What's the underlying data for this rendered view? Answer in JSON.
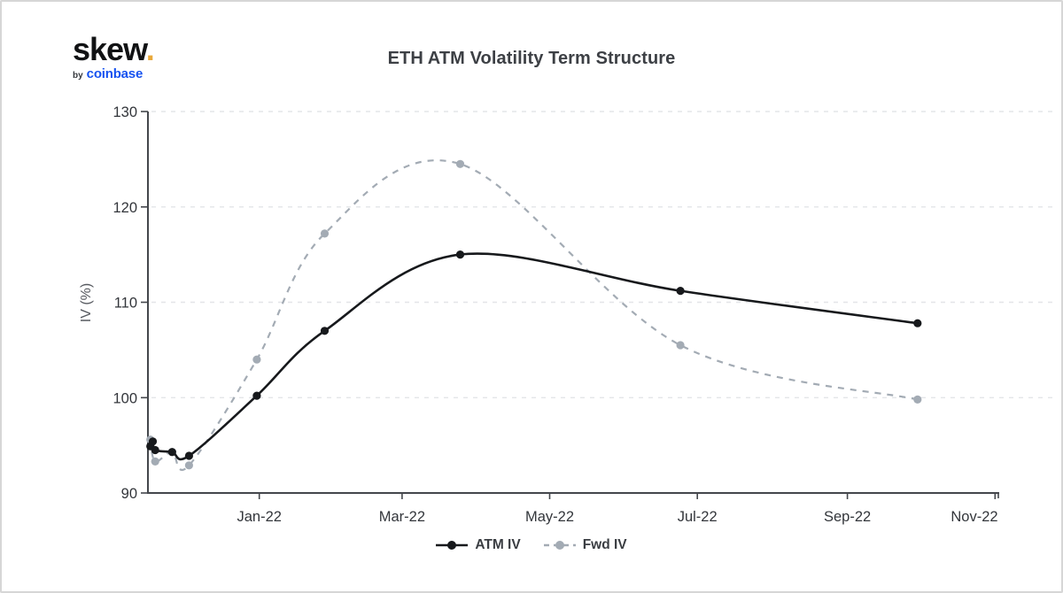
{
  "brand": {
    "name": "skew",
    "dot": ".",
    "by": "by",
    "company": "coinbase"
  },
  "title": "ETH ATM Volatility Term Structure",
  "legend": {
    "items": [
      {
        "label": "ATM IV"
      },
      {
        "label": "Fwd IV"
      }
    ]
  },
  "colors": {
    "atm_line": "#17191c",
    "fwd_line": "#a3abb4",
    "axis": "#44474c",
    "grid": "#e3e5e8",
    "tick_label": "#33363b",
    "title_text": "#3d4045",
    "brand_dot": "#e9a93b",
    "coinbase_blue": "#1652f0"
  },
  "chart_data": {
    "type": "line",
    "title": "ETH ATM Volatility Term Structure",
    "xlabel": "",
    "ylabel": "IV (%)",
    "ylim": [
      90,
      130
    ],
    "yticks": [
      90,
      100,
      110,
      120,
      130
    ],
    "x_domain": [
      "2021-11-16",
      "2022-11-02"
    ],
    "xticks": [
      {
        "date": "2022-01-01",
        "label": "Jan-22"
      },
      {
        "date": "2022-03-01",
        "label": "Mar-22"
      },
      {
        "date": "2022-05-01",
        "label": "May-22"
      },
      {
        "date": "2022-07-01",
        "label": "Jul-22"
      },
      {
        "date": "2022-09-01",
        "label": "Sep-22"
      },
      {
        "date": "2022-11-01",
        "label": "Nov-22"
      }
    ],
    "grid": "horizontal-dashed",
    "legend_position": "bottom-center",
    "series": [
      {
        "name": "ATM IV",
        "color": "#17191c",
        "style": "solid",
        "marker": "circle",
        "points": [
          [
            "2021-11-17",
            94.9
          ],
          [
            "2021-11-18",
            95.4
          ],
          [
            "2021-11-19",
            94.5
          ],
          [
            "2021-11-26",
            94.3
          ],
          [
            "2021-12-03",
            93.9
          ],
          [
            "2021-12-31",
            100.2
          ],
          [
            "2022-01-28",
            107.0
          ],
          [
            "2022-03-25",
            115.0
          ],
          [
            "2022-06-24",
            111.2
          ],
          [
            "2022-09-30",
            107.8
          ]
        ]
      },
      {
        "name": "Fwd IV",
        "color": "#a3abb4",
        "style": "dashed",
        "marker": "circle",
        "points": [
          [
            "2021-11-17",
            95.6
          ],
          [
            "2021-11-19",
            93.3
          ],
          [
            "2021-11-26",
            94.3
          ],
          [
            "2021-12-03",
            92.9
          ],
          [
            "2021-12-31",
            104.0
          ],
          [
            "2022-01-28",
            117.2
          ],
          [
            "2022-03-25",
            124.5
          ],
          [
            "2022-06-24",
            105.5
          ],
          [
            "2022-09-30",
            99.8
          ]
        ]
      }
    ]
  }
}
